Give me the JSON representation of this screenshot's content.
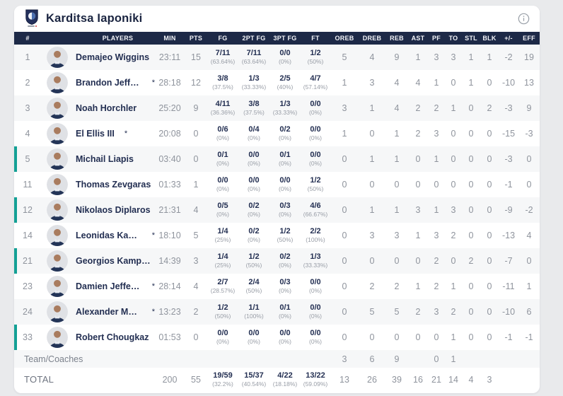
{
  "header": {
    "team_name": "Karditsa Iaponiki",
    "info_icon": "circled-i"
  },
  "colors": {
    "accent_teal": "#13a095",
    "header_navy": "#1d2947",
    "text_navy": "#232f52",
    "text_gray": "#8f949d",
    "row_alt": "#f6f7f8",
    "page_bg": "#e9eaec"
  },
  "table": {
    "columns": [
      "#",
      "PLAYERS",
      "MIN",
      "PTS",
      "FG",
      "2PT FG",
      "3PT FG",
      "FT",
      "OREB",
      "DREB",
      "REB",
      "AST",
      "PF",
      "TO",
      "STL",
      "BLK",
      "+/-",
      "EFF"
    ],
    "players": [
      {
        "num": "1",
        "name": "Demajeo Wiggins",
        "star": "",
        "on_court": false,
        "min": "23:11",
        "pts": "15",
        "fg": "7/11",
        "fg_pct": "(63.64%)",
        "fg2": "7/11",
        "fg2_pct": "(63.64%)",
        "fg3": "0/0",
        "fg3_pct": "(0%)",
        "ft": "1/2",
        "ft_pct": "(50%)",
        "oreb": "5",
        "dreb": "4",
        "reb": "9",
        "ast": "1",
        "pf": "3",
        "to": "3",
        "stl": "1",
        "blk": "1",
        "pm": "-2",
        "eff": "19"
      },
      {
        "num": "2",
        "name": "Brandon Jefferson",
        "star": "*",
        "on_court": false,
        "min": "28:18",
        "pts": "12",
        "fg": "3/8",
        "fg_pct": "(37.5%)",
        "fg2": "1/3",
        "fg2_pct": "(33.33%)",
        "fg3": "2/5",
        "fg3_pct": "(40%)",
        "ft": "4/7",
        "ft_pct": "(57.14%)",
        "oreb": "1",
        "dreb": "3",
        "reb": "4",
        "ast": "4",
        "pf": "1",
        "to": "0",
        "stl": "1",
        "blk": "0",
        "pm": "-10",
        "eff": "13"
      },
      {
        "num": "3",
        "name": "Noah Horchler",
        "star": "",
        "on_court": false,
        "min": "25:20",
        "pts": "9",
        "fg": "4/11",
        "fg_pct": "(36.36%)",
        "fg2": "3/8",
        "fg2_pct": "(37.5%)",
        "fg3": "1/3",
        "fg3_pct": "(33.33%)",
        "ft": "0/0",
        "ft_pct": "(0%)",
        "oreb": "3",
        "dreb": "1",
        "reb": "4",
        "ast": "2",
        "pf": "2",
        "to": "1",
        "stl": "0",
        "blk": "2",
        "pm": "-3",
        "eff": "9"
      },
      {
        "num": "4",
        "name": "El Ellis III",
        "star": "*",
        "on_court": false,
        "min": "20:08",
        "pts": "0",
        "fg": "0/6",
        "fg_pct": "(0%)",
        "fg2": "0/4",
        "fg2_pct": "(0%)",
        "fg3": "0/2",
        "fg3_pct": "(0%)",
        "ft": "0/0",
        "ft_pct": "(0%)",
        "oreb": "1",
        "dreb": "0",
        "reb": "1",
        "ast": "2",
        "pf": "3",
        "to": "0",
        "stl": "0",
        "blk": "0",
        "pm": "-15",
        "eff": "-3"
      },
      {
        "num": "5",
        "name": "Michail Liapis",
        "star": "",
        "on_court": true,
        "min": "03:40",
        "pts": "0",
        "fg": "0/1",
        "fg_pct": "(0%)",
        "fg2": "0/0",
        "fg2_pct": "(0%)",
        "fg3": "0/1",
        "fg3_pct": "(0%)",
        "ft": "0/0",
        "ft_pct": "(0%)",
        "oreb": "0",
        "dreb": "1",
        "reb": "1",
        "ast": "0",
        "pf": "1",
        "to": "0",
        "stl": "0",
        "blk": "0",
        "pm": "-3",
        "eff": "0"
      },
      {
        "num": "11",
        "name": "Thomas Zevgaras",
        "star": "",
        "on_court": false,
        "min": "01:33",
        "pts": "1",
        "fg": "0/0",
        "fg_pct": "(0%)",
        "fg2": "0/0",
        "fg2_pct": "(0%)",
        "fg3": "0/0",
        "fg3_pct": "(0%)",
        "ft": "1/2",
        "ft_pct": "(50%)",
        "oreb": "0",
        "dreb": "0",
        "reb": "0",
        "ast": "0",
        "pf": "0",
        "to": "0",
        "stl": "0",
        "blk": "0",
        "pm": "-1",
        "eff": "0"
      },
      {
        "num": "12",
        "name": "Nikolaos Diplaros",
        "star": "",
        "on_court": true,
        "min": "21:31",
        "pts": "4",
        "fg": "0/5",
        "fg_pct": "(0%)",
        "fg2": "0/2",
        "fg2_pct": "(0%)",
        "fg3": "0/3",
        "fg3_pct": "(0%)",
        "ft": "4/6",
        "ft_pct": "(66.67%)",
        "oreb": "0",
        "dreb": "1",
        "reb": "1",
        "ast": "3",
        "pf": "1",
        "to": "3",
        "stl": "0",
        "blk": "0",
        "pm": "-9",
        "eff": "-2"
      },
      {
        "num": "14",
        "name": "Leonidas Kaselakis",
        "star": "*",
        "on_court": false,
        "min": "18:10",
        "pts": "5",
        "fg": "1/4",
        "fg_pct": "(25%)",
        "fg2": "0/2",
        "fg2_pct": "(0%)",
        "fg3": "1/2",
        "fg3_pct": "(50%)",
        "ft": "2/2",
        "ft_pct": "(100%)",
        "oreb": "0",
        "dreb": "3",
        "reb": "3",
        "ast": "1",
        "pf": "3",
        "to": "2",
        "stl": "0",
        "blk": "0",
        "pm": "-13",
        "eff": "4"
      },
      {
        "num": "21",
        "name": "Georgios Kamperidis",
        "star": "",
        "on_court": true,
        "min": "14:39",
        "pts": "3",
        "fg": "1/4",
        "fg_pct": "(25%)",
        "fg2": "1/2",
        "fg2_pct": "(50%)",
        "fg3": "0/2",
        "fg3_pct": "(0%)",
        "ft": "1/3",
        "ft_pct": "(33.33%)",
        "oreb": "0",
        "dreb": "0",
        "reb": "0",
        "ast": "0",
        "pf": "2",
        "to": "0",
        "stl": "2",
        "blk": "0",
        "pm": "-7",
        "eff": "0"
      },
      {
        "num": "23",
        "name": "Damien Jefferson",
        "star": "*",
        "on_court": false,
        "min": "28:14",
        "pts": "4",
        "fg": "2/7",
        "fg_pct": "(28.57%)",
        "fg2": "2/4",
        "fg2_pct": "(50%)",
        "fg3": "0/3",
        "fg3_pct": "(0%)",
        "ft": "0/0",
        "ft_pct": "(0%)",
        "oreb": "0",
        "dreb": "2",
        "reb": "2",
        "ast": "1",
        "pf": "2",
        "to": "1",
        "stl": "0",
        "blk": "0",
        "pm": "-11",
        "eff": "1"
      },
      {
        "num": "24",
        "name": "Alexander Madsen",
        "star": "*",
        "on_court": false,
        "min": "13:23",
        "pts": "2",
        "fg": "1/2",
        "fg_pct": "(50%)",
        "fg2": "1/1",
        "fg2_pct": "(100%)",
        "fg3": "0/1",
        "fg3_pct": "(0%)",
        "ft": "0/0",
        "ft_pct": "(0%)",
        "oreb": "0",
        "dreb": "5",
        "reb": "5",
        "ast": "2",
        "pf": "3",
        "to": "2",
        "stl": "0",
        "blk": "0",
        "pm": "-10",
        "eff": "6"
      },
      {
        "num": "33",
        "name": "Robert Chougkaz",
        "star": "",
        "on_court": true,
        "min": "01:53",
        "pts": "0",
        "fg": "0/0",
        "fg_pct": "(0%)",
        "fg2": "0/0",
        "fg2_pct": "(0%)",
        "fg3": "0/0",
        "fg3_pct": "(0%)",
        "ft": "0/0",
        "ft_pct": "(0%)",
        "oreb": "0",
        "dreb": "0",
        "reb": "0",
        "ast": "0",
        "pf": "0",
        "to": "1",
        "stl": "0",
        "blk": "0",
        "pm": "-1",
        "eff": "-1"
      }
    ],
    "team_row": {
      "label": "Team/Coaches",
      "oreb": "3",
      "dreb": "6",
      "reb": "9",
      "ast": "",
      "pf": "0",
      "to": "1",
      "stl": "",
      "blk": "",
      "pm": "",
      "eff": ""
    },
    "total_row": {
      "label": "TOTAL",
      "min": "200",
      "pts": "55",
      "fg": "19/59",
      "fg_pct": "(32.2%)",
      "fg2": "15/37",
      "fg2_pct": "(40.54%)",
      "fg3": "4/22",
      "fg3_pct": "(18.18%)",
      "ft": "13/22",
      "ft_pct": "(59.09%)",
      "oreb": "13",
      "dreb": "26",
      "reb": "39",
      "ast": "16",
      "pf": "21",
      "to": "14",
      "stl": "4",
      "blk": "3",
      "pm": "",
      "eff": ""
    }
  }
}
